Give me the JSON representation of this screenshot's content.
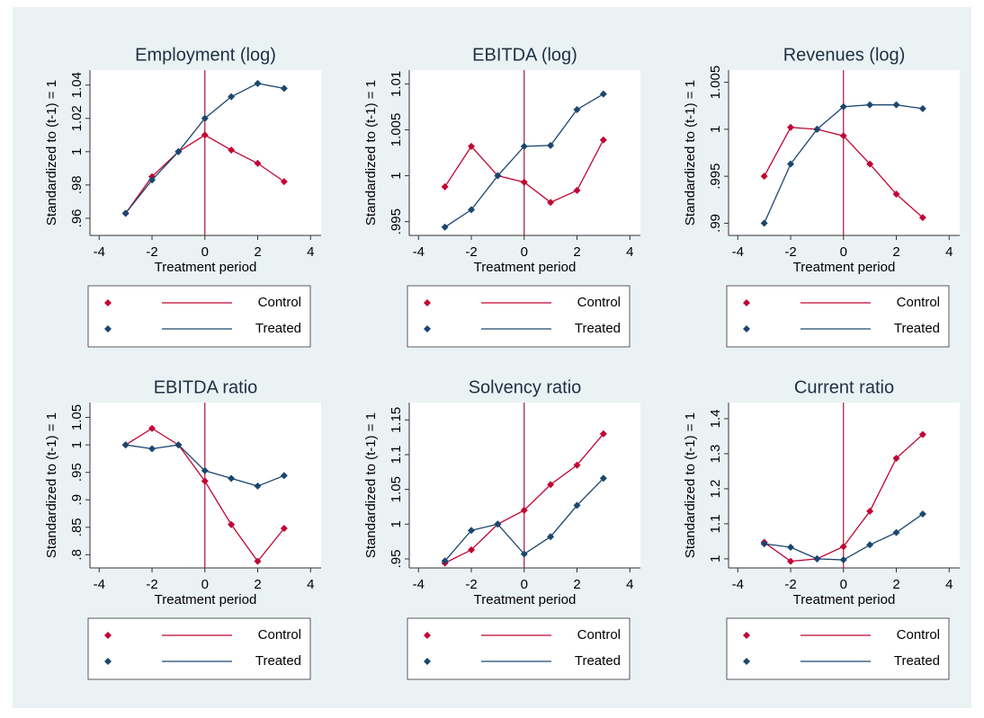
{
  "chart_data": [
    {
      "type": "line",
      "title": "Employment (log)",
      "xlabel": "Treatment period",
      "ylabel": "Standardized to (t-1) = 1",
      "x": [
        -3,
        -2,
        -1,
        0,
        1,
        2,
        3
      ],
      "series": [
        {
          "name": "Control",
          "color": "#c10534",
          "values": [
            0.963,
            0.985,
            1.0,
            1.01,
            1.001,
            0.993,
            0.982
          ]
        },
        {
          "name": "Treated",
          "color": "#1a476f",
          "values": [
            0.963,
            0.983,
            1.0,
            1.02,
            1.033,
            1.041,
            1.038
          ]
        }
      ],
      "xlim": [
        -4.35,
        4.4
      ],
      "xticks": [
        -4,
        -2,
        0,
        2,
        4
      ],
      "ylim": [
        0.9497,
        1.049
      ],
      "yticks": [
        {
          "value": 0.96,
          "label": ".96"
        },
        {
          "value": 0.98,
          "label": ".98"
        },
        1,
        1.02,
        1.04
      ],
      "xline": 0,
      "xline_color": "#b0103a",
      "legend": "below"
    },
    {
      "type": "line",
      "title": "EBITDA (log)",
      "xlabel": "Treatment period",
      "ylabel": "Standardized to (t-1) = 1",
      "x": [
        -3,
        -2,
        -1,
        0,
        1,
        2,
        3
      ],
      "series": [
        {
          "name": "Control",
          "color": "#c10534",
          "values": [
            0.9988,
            1.0032,
            1.0,
            0.9993,
            0.9971,
            0.9984,
            1.0039
          ]
        },
        {
          "name": "Treated",
          "color": "#1a476f",
          "values": [
            0.9944,
            0.9963,
            1.0,
            1.0032,
            1.0033,
            1.0072,
            1.0089
          ]
        }
      ],
      "xlim": [
        -4.35,
        4.4
      ],
      "xticks": [
        -4,
        -2,
        0,
        2,
        4
      ],
      "ylim": [
        0.9935,
        1.0115
      ],
      "yticks": [
        {
          "value": 0.995,
          "label": ".995"
        },
        1,
        1.005,
        1.01
      ],
      "xline": 0,
      "xline_color": "#b0103a",
      "legend": "below"
    },
    {
      "type": "line",
      "title": "Revenues (log)",
      "xlabel": "Treatment period",
      "ylabel": "Standardized to (t-1) = 1",
      "x": [
        -3,
        -2,
        -1,
        0,
        1,
        2,
        3
      ],
      "series": [
        {
          "name": "Control",
          "color": "#c10534",
          "values": [
            0.995,
            1.0002,
            1.0,
            0.9993,
            0.9963,
            0.9931,
            0.9906
          ]
        },
        {
          "name": "Treated",
          "color": "#1a476f",
          "values": [
            0.99,
            0.9963,
            1.0,
            1.0024,
            1.0026,
            1.0026,
            1.0022
          ]
        }
      ],
      "xlim": [
        -4.35,
        4.4
      ],
      "xticks": [
        -4,
        -2,
        0,
        2,
        4
      ],
      "ylim": [
        0.9887,
        1.0063
      ],
      "yticks": [
        {
          "value": 0.99,
          "label": ".99"
        },
        {
          "value": 0.995,
          "label": ".995"
        },
        1,
        1.005
      ],
      "xline": 0,
      "xline_color": "#b0103a",
      "legend": "below"
    },
    {
      "type": "line",
      "title": "EBITDA ratio",
      "xlabel": "Treatment period",
      "ylabel": "Standardized to (t-1) = 1",
      "x": [
        -3,
        -2,
        -1,
        0,
        1,
        2,
        3
      ],
      "series": [
        {
          "name": "Control",
          "color": "#c10534",
          "values": [
            1.0,
            1.03,
            1.0,
            0.934,
            0.855,
            0.788,
            0.848
          ]
        },
        {
          "name": "Treated",
          "color": "#1a476f",
          "values": [
            1.0,
            0.993,
            1.0,
            0.953,
            0.939,
            0.925,
            0.944
          ]
        }
      ],
      "xlim": [
        -4.35,
        4.4
      ],
      "xticks": [
        -4,
        -2,
        0,
        2,
        4
      ],
      "ylim": [
        0.776,
        1.077
      ],
      "yticks": [
        {
          "value": 0.8,
          "label": ".8"
        },
        {
          "value": 0.85,
          "label": ".85"
        },
        {
          "value": 0.9,
          "label": ".9"
        },
        {
          "value": 0.95,
          "label": ".95"
        },
        1,
        1.05
      ],
      "xline": 0,
      "xline_color": "#b0103a",
      "legend": "below"
    },
    {
      "type": "line",
      "title": "Solvency ratio",
      "xlabel": "Treatment period",
      "ylabel": "Standardized to (t-1) = 1",
      "x": [
        -3,
        -2,
        -1,
        0,
        1,
        2,
        3
      ],
      "series": [
        {
          "name": "Control",
          "color": "#c10534",
          "values": [
            0.944,
            0.963,
            1.0,
            1.02,
            1.057,
            1.085,
            1.13
          ]
        },
        {
          "name": "Treated",
          "color": "#1a476f",
          "values": [
            0.947,
            0.991,
            1.0,
            0.957,
            0.982,
            1.027,
            1.066
          ]
        }
      ],
      "xlim": [
        -4.35,
        4.4
      ],
      "xticks": [
        -4,
        -2,
        0,
        2,
        4
      ],
      "ylim": [
        0.937,
        1.175
      ],
      "yticks": [
        {
          "value": 0.95,
          "label": ".95"
        },
        1,
        1.05,
        1.1,
        1.15
      ],
      "xline": 0,
      "xline_color": "#b0103a",
      "legend": "below"
    },
    {
      "type": "line",
      "title": "Current ratio",
      "xlabel": "Treatment period",
      "ylabel": "Standardized to (t-1) = 1",
      "x": [
        -3,
        -2,
        -1,
        0,
        1,
        2,
        3
      ],
      "series": [
        {
          "name": "Control",
          "color": "#c10534",
          "values": [
            1.047,
            0.993,
            1.0,
            1.035,
            1.136,
            1.287,
            1.355
          ]
        },
        {
          "name": "Treated",
          "color": "#1a476f",
          "values": [
            1.043,
            1.033,
            1.0,
            0.997,
            1.04,
            1.075,
            1.128
          ]
        }
      ],
      "xlim": [
        -4.35,
        4.4
      ],
      "xticks": [
        -4,
        -2,
        0,
        2,
        4
      ],
      "ylim": [
        0.974,
        1.446
      ],
      "yticks": [
        1,
        1.1,
        1.2,
        1.3,
        1.4
      ],
      "xline": 0,
      "xline_color": "#b0103a",
      "legend": "below"
    }
  ]
}
